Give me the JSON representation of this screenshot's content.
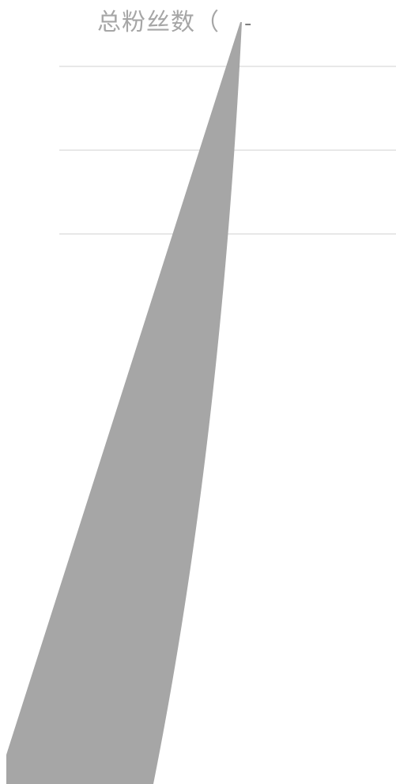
{
  "chart_data": {
    "type": "area",
    "title": "总粉丝数（",
    "title_marker": "-",
    "xlabel": "",
    "ylabel": "",
    "grid": true,
    "legend": "none",
    "colors": {
      "area_fill": "#a6a6a6",
      "grid": "#d9d9d9",
      "title": "#a6a6a6",
      "marker": "#808080"
    },
    "series": [
      {
        "name": "",
        "type": "area",
        "values": []
      }
    ]
  }
}
